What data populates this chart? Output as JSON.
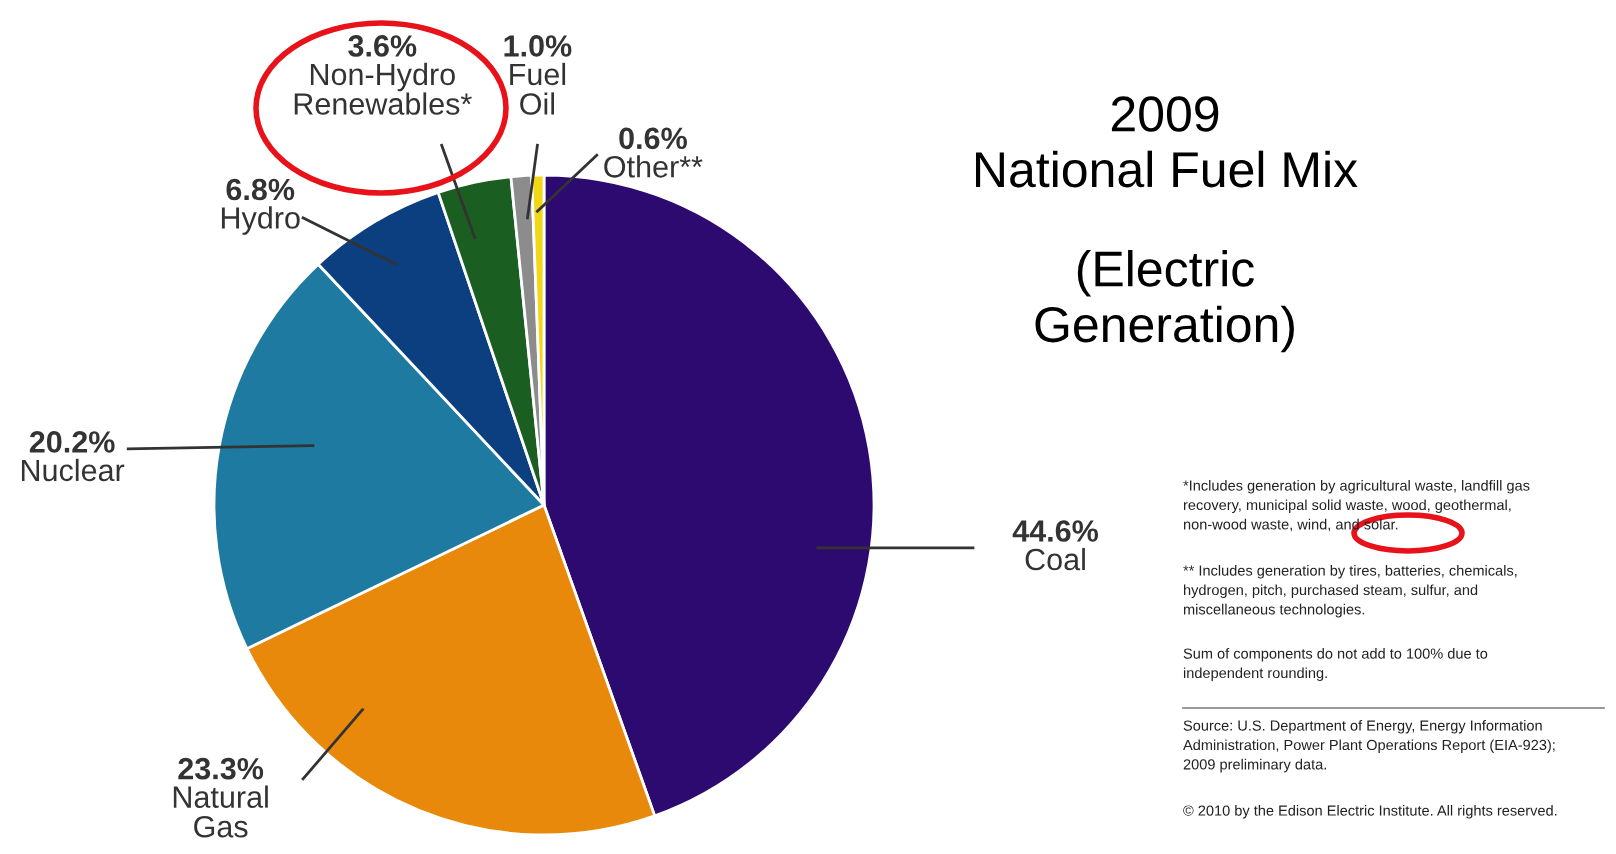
{
  "chart_data": {
    "type": "pie",
    "title": "2009\nNational Fuel Mix",
    "subtitle": "(Electric\nGeneration)",
    "categories": [
      "Coal",
      "Natural\nGas",
      "Nuclear",
      "Hydro",
      "Non-Hydro\nRenewables*",
      "Fuel\nOil",
      "Other**"
    ],
    "values": [
      44.6,
      23.3,
      20.2,
      6.8,
      3.6,
      1.0,
      0.6
    ],
    "value_labels": [
      "44.6%",
      "23.3%",
      "20.2%",
      "6.8%",
      "3.6%",
      "1.0%",
      "0.6%"
    ],
    "colors": [
      "#2c0a70",
      "#e8890c",
      "#1f7aa2",
      "#0c3f80",
      "#1a5e22",
      "#8c8c8c",
      "#f0d818"
    ],
    "annotations": [
      "*Includes generation by agricultural waste, landfill gas\nrecovery, municipal solid waste, wood, geothermal,\nnon-wood waste, wind, and solar.",
      "** Includes generation by tires, batteries, chemicals,\nhydrogen, pitch, purchased steam, sulfur, and\nmiscellaneous technologies.",
      "Sum of components do not add to 100% due to\nindependent rounding.",
      "Source: U.S. Department of Energy, Energy Information\nAdministration, Power Plant Operations Report (EIA-923);\n2009 preliminary data.",
      "© 2010 by the Edison Electric Institute. All rights reserved."
    ]
  }
}
